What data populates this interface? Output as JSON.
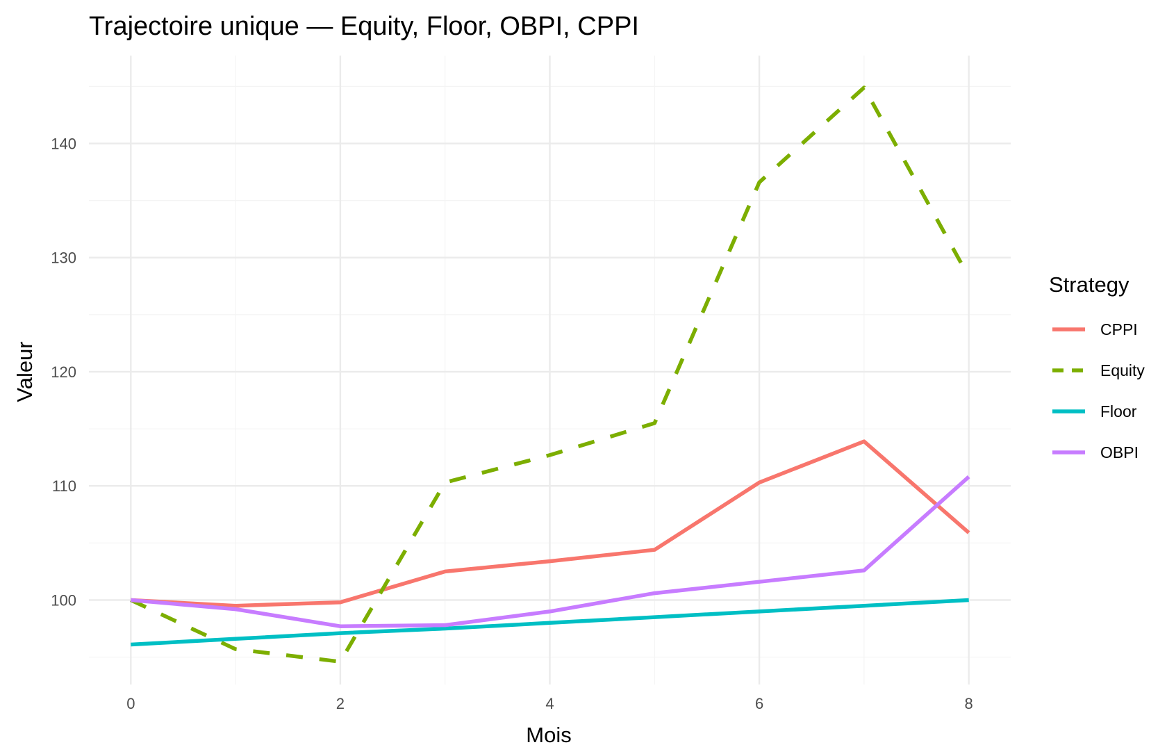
{
  "chart_data": {
    "type": "line",
    "title": "Trajectoire unique — Equity, Floor, OBPI, CPPI",
    "xlabel": "Mois",
    "ylabel": "Valeur",
    "x": [
      0,
      1,
      2,
      3,
      4,
      5,
      6,
      7,
      8
    ],
    "xlim": [
      -0.4,
      8.4
    ],
    "ylim": [
      92.6,
      147.7
    ],
    "x_ticks": [
      0,
      2,
      4,
      6,
      8
    ],
    "y_ticks": [
      100,
      110,
      120,
      130,
      140
    ],
    "grid": true,
    "legend": {
      "title": "Strategy",
      "position": "right"
    },
    "series": [
      {
        "name": "CPPI",
        "color": "#F8766D",
        "dash": "solid",
        "values": [
          100.0,
          99.5,
          99.8,
          102.5,
          103.4,
          104.4,
          110.3,
          113.9,
          105.9
        ]
      },
      {
        "name": "Equity",
        "color": "#7CAE00",
        "dash": "dashed",
        "values": [
          100.0,
          95.7,
          94.6,
          110.3,
          112.7,
          115.5,
          136.6,
          144.9,
          128.3
        ]
      },
      {
        "name": "Floor",
        "color": "#00BFC4",
        "dash": "solid",
        "values": [
          96.1,
          96.6,
          97.1,
          97.5,
          98.0,
          98.5,
          99.0,
          99.5,
          100.0
        ]
      },
      {
        "name": "OBPI",
        "color": "#C77CFF",
        "dash": "solid",
        "values": [
          100.0,
          99.2,
          97.7,
          97.8,
          99.0,
          100.6,
          101.6,
          102.6,
          110.8
        ]
      }
    ]
  }
}
